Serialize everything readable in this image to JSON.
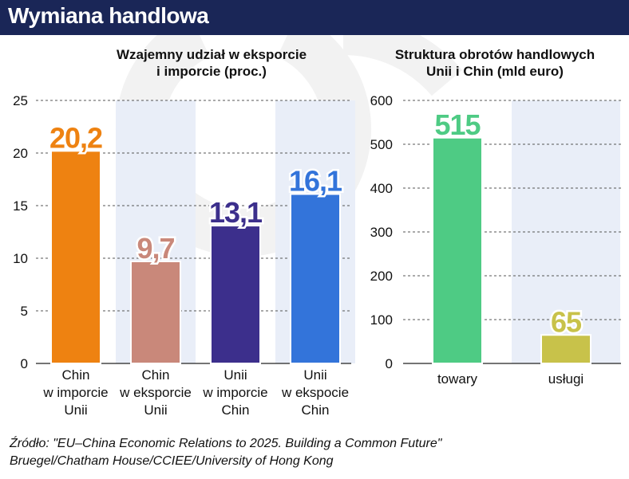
{
  "header": {
    "title": "Wymiana handlowa"
  },
  "source": {
    "line1": "Źródło: \"EU–China Economic Relations to 2025. Building a Common Future\"",
    "line2": "Bruegel/Chatham House/CCIEE/University of Hong Kong"
  },
  "colors": {
    "header_bg": "#1a2657",
    "band": "#e9eef8",
    "grid": "#555555"
  },
  "chart_data": [
    {
      "type": "bar",
      "title_line1": "Wzajemny udział w eksporcie",
      "title_line2": "i imporcie (proc.)",
      "categories": [
        [
          "Chin",
          "w imporcie",
          "Unii"
        ],
        [
          "Chin",
          "w eksporcie",
          "Unii"
        ],
        [
          "Unii",
          "w imporcie",
          "Chin"
        ],
        [
          "Unii",
          "w ekspocie",
          "Chin"
        ]
      ],
      "values": [
        20.2,
        9.7,
        13.1,
        16.1
      ],
      "value_labels": [
        "20,2",
        "9,7",
        "13,1",
        "16,1"
      ],
      "colors": [
        "#ee8211",
        "#c9887a",
        "#3c2f8c",
        "#3374da"
      ],
      "ylim": [
        0,
        25
      ],
      "yticks": [
        0,
        5,
        10,
        15,
        20,
        25
      ],
      "grid": true
    },
    {
      "type": "bar",
      "title_line1": "Struktura obrotów handlowych",
      "title_line2": "Unii i Chin (mld euro)",
      "categories": [
        [
          "towary"
        ],
        [
          "usługi"
        ]
      ],
      "values": [
        515,
        65
      ],
      "value_labels": [
        "515",
        "65"
      ],
      "colors": [
        "#4ecb84",
        "#c8c24a"
      ],
      "ylim": [
        0,
        600
      ],
      "yticks": [
        0,
        100,
        200,
        300,
        400,
        500,
        600
      ],
      "grid": true
    }
  ]
}
